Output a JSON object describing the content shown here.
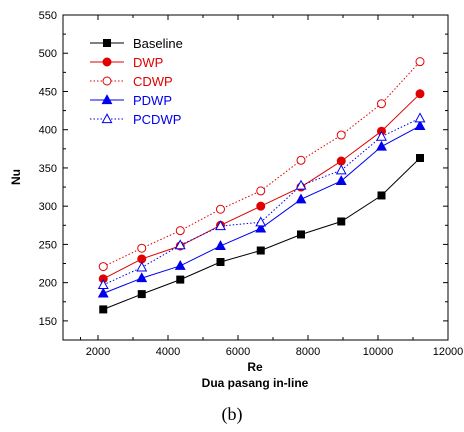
{
  "chart_data": {
    "type": "line",
    "xlabel": "Re",
    "subtitle": "Dua pasang in-line",
    "ylabel": "Nu",
    "caption": "(b)",
    "xlim": [
      1000,
      12000
    ],
    "ylim": [
      125,
      550
    ],
    "xticks": [
      2000,
      4000,
      6000,
      8000,
      10000,
      12000
    ],
    "yticks": [
      150,
      200,
      250,
      300,
      350,
      400,
      450,
      500,
      550
    ],
    "grid": false,
    "legend_position": "top-left",
    "x": [
      2150,
      3250,
      4350,
      5500,
      6650,
      7800,
      8950,
      10100,
      11200
    ],
    "series": [
      {
        "name": "Baseline",
        "values": [
          165,
          185,
          204,
          227,
          242,
          263,
          280,
          314,
          363
        ],
        "color": "#000000",
        "marker": "square",
        "filled": true,
        "dash": "solid"
      },
      {
        "name": "DWP",
        "values": [
          205,
          231,
          248,
          275,
          300,
          325,
          359,
          398,
          447
        ],
        "color": "#e00000",
        "marker": "circle",
        "filled": true,
        "dash": "solid"
      },
      {
        "name": "CDWP",
        "values": [
          221,
          245,
          268,
          296,
          320,
          360,
          393,
          434,
          489
        ],
        "color": "#e00000",
        "marker": "circle",
        "filled": false,
        "dash": "dotted"
      },
      {
        "name": "PDWP",
        "values": [
          186,
          206,
          222,
          248,
          271,
          309,
          333,
          378,
          405
        ],
        "color": "#0000ee",
        "marker": "triangle",
        "filled": true,
        "dash": "solid"
      },
      {
        "name": "PCDWP",
        "values": [
          197,
          220,
          249,
          274,
          279,
          327,
          347,
          391,
          415
        ],
        "color": "#0000ee",
        "marker": "triangle",
        "filled": false,
        "dash": "dotted"
      }
    ]
  }
}
